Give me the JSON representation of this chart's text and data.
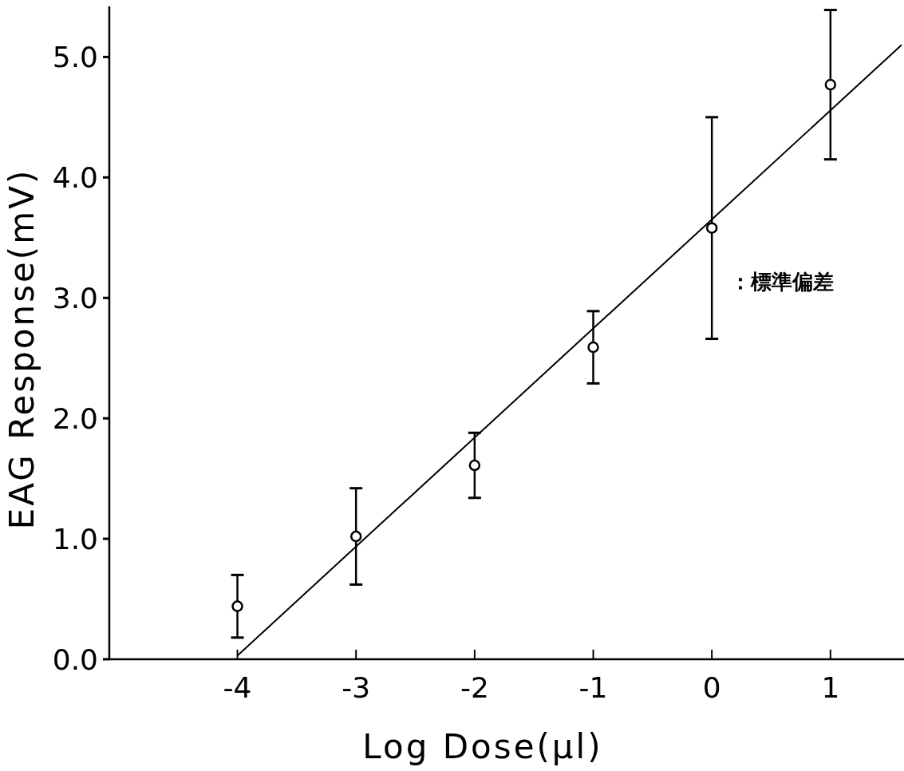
{
  "chart_data": {
    "type": "scatter",
    "xlabel": "Log Dose(µl)",
    "ylabel": "EAG Response(mV)",
    "x": [
      -4,
      -3,
      -2,
      -1,
      0,
      1
    ],
    "series": [
      {
        "color": "#000000",
        "marker": "circle",
        "values": [
          0.44,
          1.02,
          1.61,
          2.59,
          3.58,
          4.77
        ],
        "errors": [
          0.26,
          0.4,
          0.27,
          0.3,
          0.92,
          0.62
        ]
      },
      {
        "type": "line",
        "color": "#000000",
        "marker": "none",
        "x": [
          -4,
          1.6
        ],
        "values": [
          0.03,
          5.1
        ]
      }
    ],
    "annotations": [
      "：標準偏差"
    ],
    "xlim": [
      -5.08,
      1.62
    ],
    "ylim": [
      0,
      5.42
    ],
    "xticks": [
      -4,
      -3,
      -2,
      -1,
      0,
      1
    ],
    "yticks": [
      {
        "value": 0,
        "label": "0.0"
      },
      {
        "value": 1,
        "label": "1.0"
      },
      {
        "value": 2,
        "label": "2.0"
      },
      {
        "value": 3,
        "label": "3.0"
      },
      {
        "value": 4,
        "label": "4.0"
      },
      {
        "value": 5,
        "label": "5.0"
      }
    ],
    "grid": false
  }
}
